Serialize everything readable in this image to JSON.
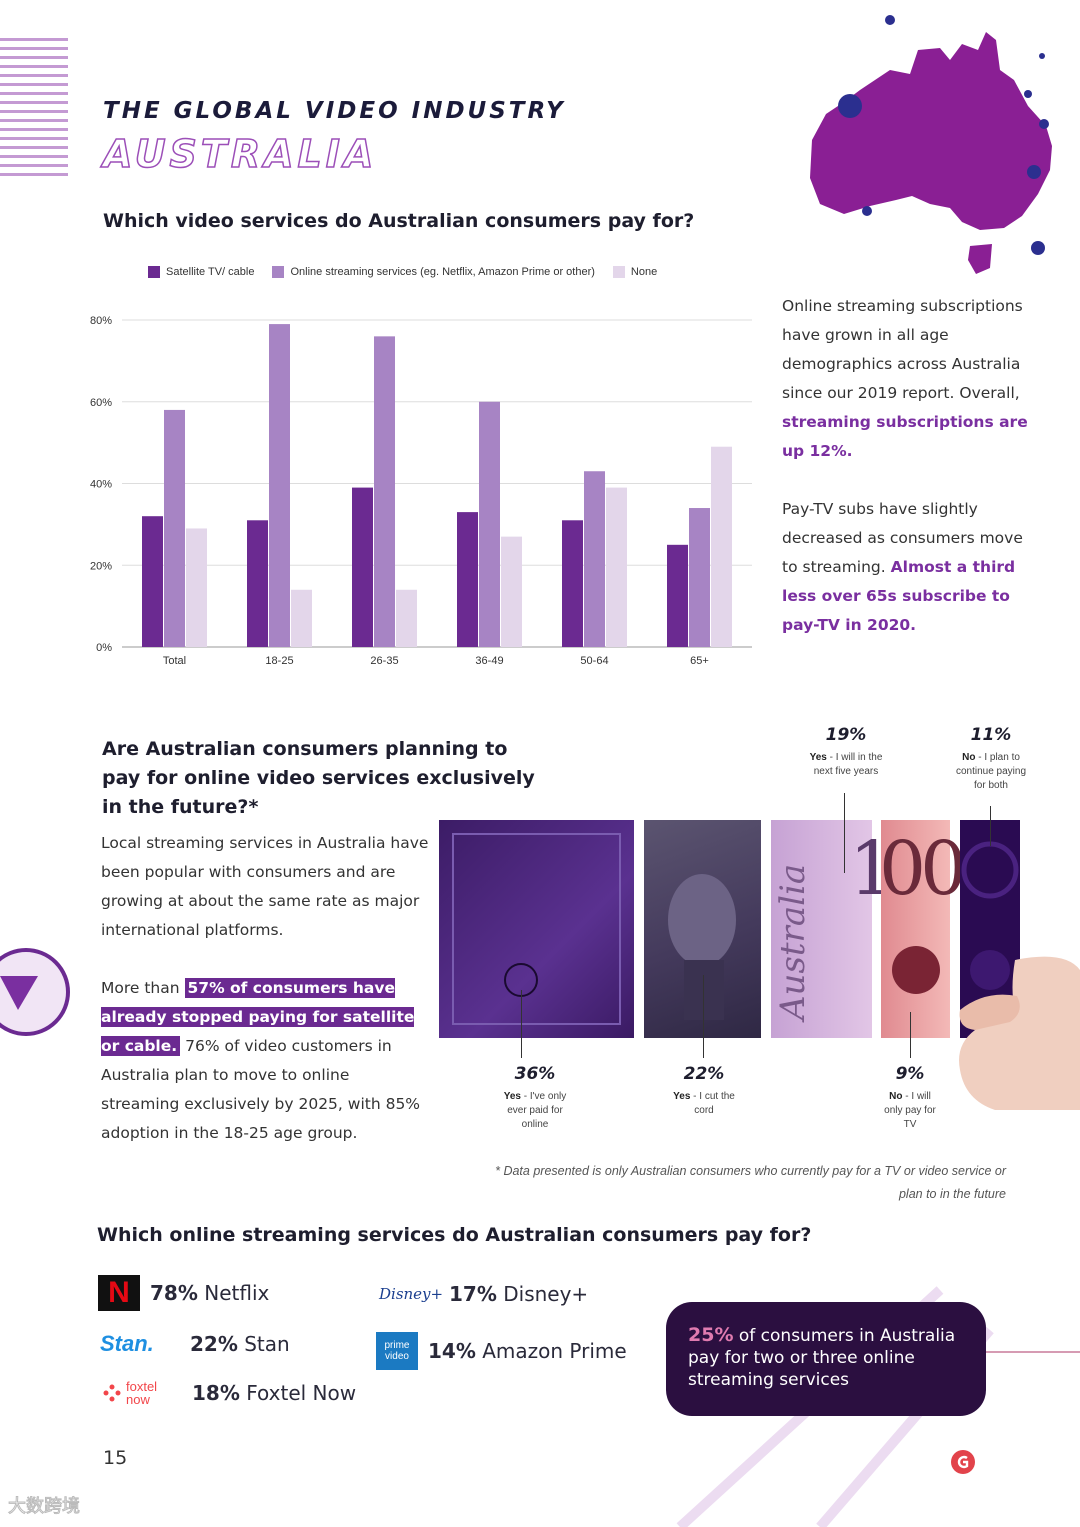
{
  "header": {
    "kicker": "THE GLOBAL VIDEO INDUSTRY",
    "country": "AUSTRALIA"
  },
  "section1": {
    "question": "Which video services do Australian consumers pay for?",
    "side_text": {
      "p1": "Online streaming subscriptions have grown in all age demographics across Australia since our 2019 report. Overall,",
      "p1_hl": "streaming subscriptions are up 12%.",
      "p2": "Pay-TV subs have slightly decreased as consumers move to streaming.",
      "p2_hl": "Almost a third less over 65s subscribe to pay-TV in 2020."
    }
  },
  "chart_data": {
    "type": "bar",
    "categories": [
      "Total",
      "18-25",
      "26-35",
      "36-49",
      "50-64",
      "65+"
    ],
    "series": [
      {
        "name": "Satellite TV/ cable",
        "color": "#6b2a91",
        "values": [
          32,
          31,
          39,
          33,
          31,
          25
        ]
      },
      {
        "name": "Online streaming services (eg. Netflix, Amazon Prime or other)",
        "color": "#a784c4",
        "values": [
          58,
          79,
          76,
          60,
          43,
          34
        ]
      },
      {
        "name": "None",
        "color": "#e3d6ea",
        "values": [
          29,
          14,
          14,
          27,
          39,
          49
        ]
      }
    ],
    "y_ticks": [
      "0%",
      "20%",
      "40%",
      "60%",
      "80%"
    ],
    "ylim": [
      0,
      80
    ],
    "grid": true,
    "legend_position": "top"
  },
  "section2": {
    "question": "Are Australian consumers planning to pay for online video services exclusively in the future?*",
    "para1": "Local streaming services in Australia have been popular with consumers and are growing at about the same rate as major international platforms.",
    "para2_pre": "More than",
    "para2_hl": "57% of consumers have already stopped paying for satellite or cable.",
    "para2_post": "76% of video customers in Australia plan to move to online streaming exclusively by 2025, with 85% adoption in the 18-25 age group.",
    "stats": [
      {
        "pct": "36%",
        "yes_no": "Yes",
        "desc": " - I've only ever paid for online"
      },
      {
        "pct": "22%",
        "yes_no": "Yes",
        "desc": " - I cut the cord"
      },
      {
        "pct": "19%",
        "yes_no": "Yes",
        "desc": " - I will in the next five years"
      },
      {
        "pct": "9%",
        "yes_no": "No",
        "desc": " - I will only pay for TV"
      },
      {
        "pct": "11%",
        "yes_no": "No",
        "desc": " - I plan to continue paying for both"
      }
    ],
    "note_text": "Australia",
    "note_hundred": "100",
    "footnote": "* Data presented is only Australian consumers who currently pay for a TV or video service or plan to in the future"
  },
  "section3": {
    "question": "Which online streaming services do Australian consumers pay for?",
    "services": [
      {
        "pct": "78%",
        "name": "Netflix",
        "logo": "N"
      },
      {
        "pct": "22%",
        "name": "Stan",
        "logo": "Stan."
      },
      {
        "pct": "18%",
        "name": "Foxtel Now",
        "logo": "foxtel now"
      },
      {
        "pct": "17%",
        "name": "Disney+",
        "logo": "Disney+"
      },
      {
        "pct": "14%",
        "name": "Amazon Prime",
        "logo": "prime video"
      }
    ],
    "callout_pct": "25%",
    "callout_text": "of consumers in Australia pay for two or three online streaming services"
  },
  "footer": {
    "page": "15",
    "watermark": "大数跨境"
  },
  "colors": {
    "brand_purple": "#6b2a91",
    "mid_purple": "#a784c4",
    "light_purple": "#e3d6ea",
    "map_purple": "#8a1f94",
    "dot_blue": "#2b2f8f",
    "callout_bg": "#2b0f40"
  }
}
